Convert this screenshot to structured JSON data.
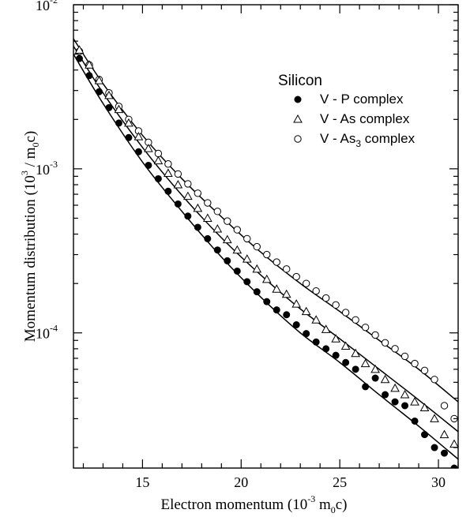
{
  "chart_data": {
    "type": "scatter",
    "xlabel": "Electron momentum",
    "xlabel_unit_base": "10",
    "xlabel_unit_exp": "-3",
    "xlabel_unit_rest": "m",
    "xlabel_unit_sub": "0",
    "xlabel_unit_tail": "c)",
    "ylabel": "Momentum distribution",
    "ylabel_unit_base": "10",
    "ylabel_unit_exp": "3",
    "ylabel_unit_rest": "/ m",
    "ylabel_unit_sub": "0",
    "ylabel_unit_tail": "c)",
    "xlim": [
      11.5,
      31
    ],
    "ylim": [
      1.5e-05,
      0.01
    ],
    "yscale": "log",
    "x_ticks": [
      15,
      20,
      25,
      30
    ],
    "x_tick_labels": [
      "15",
      "20",
      "25",
      "30"
    ],
    "y_ticks": [
      0.0001,
      0.001,
      0.01
    ],
    "y_tick_base": "10",
    "y_tick_exps": [
      "-4",
      "-3",
      "-2"
    ],
    "legend": {
      "title": "Silicon",
      "position": "upper-right",
      "entries": [
        {
          "label_pre": "V - P complex",
          "label_sub": "",
          "label_post": "",
          "marker": "filled-circle"
        },
        {
          "label_pre": "V - As complex",
          "label_sub": "",
          "label_post": "",
          "marker": "open-triangle"
        },
        {
          "label_pre": "V - As",
          "label_sub": "3",
          "label_post": " complex",
          "marker": "open-circle"
        }
      ]
    },
    "series": [
      {
        "name": "V - P complex",
        "marker": "filled-circle",
        "x": [
          11.8,
          12.3,
          12.8,
          13.3,
          13.8,
          14.3,
          14.8,
          15.3,
          15.8,
          16.3,
          16.8,
          17.3,
          17.8,
          18.3,
          18.8,
          19.3,
          19.8,
          20.3,
          20.8,
          21.3,
          21.8,
          22.3,
          22.8,
          23.3,
          23.8,
          24.3,
          24.8,
          25.3,
          25.8,
          26.3,
          26.8,
          27.3,
          27.8,
          28.3,
          28.8,
          29.3,
          29.8,
          30.3,
          30.8
        ],
        "y": [
          0.0047,
          0.0037,
          0.00295,
          0.00236,
          0.0019,
          0.00155,
          0.00127,
          0.00105,
          0.00087,
          0.00073,
          0.00061,
          0.000515,
          0.00044,
          0.000375,
          0.00032,
          0.000275,
          0.000238,
          0.000205,
          0.000178,
          0.000155,
          0.000138,
          0.000129,
          0.000112,
          9.9e-05,
          8.8e-05,
          8e-05,
          7.3e-05,
          6.6e-05,
          6e-05,
          4.7e-05,
          5.3e-05,
          4.2e-05,
          3.8e-05,
          3.6e-05,
          2.9e-05,
          2.4e-05,
          2e-05,
          1.85e-05,
          1.5e-05
        ]
      },
      {
        "name": "V - As complex",
        "marker": "open-triangle",
        "x": [
          11.8,
          12.3,
          12.8,
          13.3,
          13.8,
          14.3,
          14.8,
          15.3,
          15.8,
          16.3,
          16.8,
          17.3,
          17.8,
          18.3,
          18.8,
          19.3,
          19.8,
          20.3,
          20.8,
          21.3,
          21.8,
          22.3,
          22.8,
          23.3,
          23.8,
          24.3,
          24.8,
          25.3,
          25.8,
          26.3,
          26.8,
          27.3,
          27.8,
          28.3,
          28.8,
          29.3,
          29.8,
          30.3,
          30.8
        ],
        "y": [
          0.0053,
          0.0043,
          0.00345,
          0.0028,
          0.0023,
          0.0019,
          0.00157,
          0.00133,
          0.00112,
          0.00094,
          0.0008,
          0.00068,
          0.000575,
          0.0005,
          0.00043,
          0.00037,
          0.00032,
          0.000282,
          0.000245,
          0.000212,
          0.000185,
          0.000172,
          0.00015,
          0.000135,
          0.00012,
          0.000105,
          9.2e-05,
          8.3e-05,
          7.5e-05,
          6.5e-05,
          6e-05,
          5.2e-05,
          4.6e-05,
          4.2e-05,
          3.8e-05,
          3.5e-05,
          3e-05,
          2.4e-05,
          2.1e-05
        ]
      },
      {
        "name": "V - As3 complex",
        "marker": "open-circle",
        "x": [
          11.8,
          12.3,
          12.8,
          13.3,
          13.8,
          14.3,
          14.8,
          15.3,
          15.8,
          16.3,
          16.8,
          17.3,
          17.8,
          18.3,
          18.8,
          19.3,
          19.8,
          20.3,
          20.8,
          21.3,
          21.8,
          22.3,
          22.8,
          23.3,
          23.8,
          24.3,
          24.8,
          25.3,
          25.8,
          26.3,
          26.8,
          27.3,
          27.8,
          28.3,
          28.8,
          29.3,
          29.8,
          30.3,
          30.8
        ],
        "y": [
          0.0052,
          0.0043,
          0.0035,
          0.0029,
          0.0024,
          0.002,
          0.0017,
          0.00145,
          0.00124,
          0.00107,
          0.00093,
          0.00081,
          0.00071,
          0.00062,
          0.00055,
          0.00048,
          0.000425,
          0.000375,
          0.000335,
          0.0003,
          0.00027,
          0.000245,
          0.00022,
          0.0002,
          0.00018,
          0.000163,
          0.000148,
          0.000133,
          0.00012,
          0.000108,
          9.7e-05,
          8.7e-05,
          8e-05,
          7.2e-05,
          6.5e-05,
          5.9e-05,
          5.2e-05,
          3.6e-05,
          3e-05
        ]
      }
    ],
    "fit_lines": [
      {
        "name": "fit-V-P",
        "x": [
          11.5,
          13,
          15,
          17,
          19,
          21,
          23,
          25,
          27,
          29,
          31
        ],
        "y": [
          0.005,
          0.0025,
          0.0011,
          0.00055,
          0.00029,
          0.000165,
          0.0001,
          6.6e-05,
          4.2e-05,
          2.7e-05,
          1.7e-05
        ]
      },
      {
        "name": "fit-V-As",
        "x": [
          11.5,
          13,
          15,
          17,
          19,
          21,
          23,
          25,
          27,
          29,
          31
        ],
        "y": [
          0.0056,
          0.0029,
          0.00135,
          0.00069,
          0.00038,
          0.000225,
          0.00014,
          9.2e-05,
          6e-05,
          3.9e-05,
          2.5e-05
        ]
      },
      {
        "name": "fit-V-As3",
        "x": [
          11.5,
          13,
          15,
          17,
          19,
          21,
          23,
          25,
          27,
          29,
          31
        ],
        "y": [
          0.0062,
          0.0033,
          0.0016,
          0.00087,
          0.00051,
          0.00031,
          0.0002,
          0.000135,
          9e-05,
          6e-05,
          3.8e-05
        ]
      }
    ]
  }
}
